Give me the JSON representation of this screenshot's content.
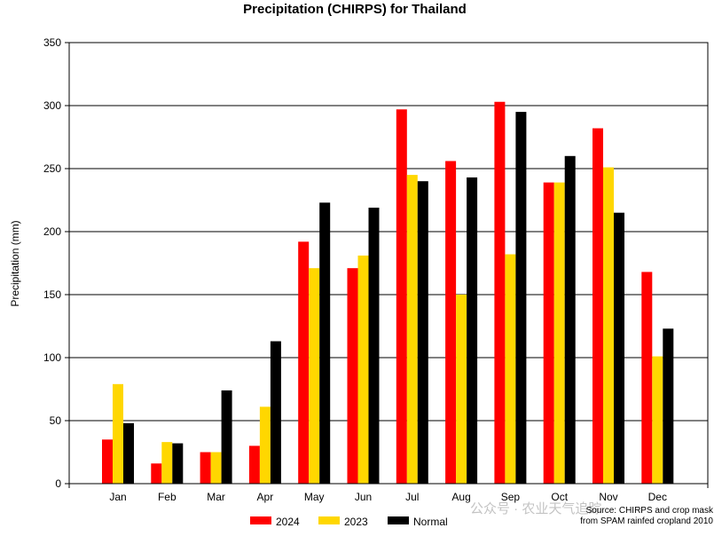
{
  "chart_data": {
    "type": "bar",
    "title": "Precipitation (CHIRPS) for Thailand",
    "xlabel": "",
    "ylabel": "Precipitation (mm)",
    "ylim": [
      0,
      350
    ],
    "yticks": [
      0,
      50,
      100,
      150,
      200,
      250,
      300,
      350
    ],
    "grid": true,
    "categories": [
      "Jan",
      "Feb",
      "Mar",
      "Apr",
      "May",
      "Jun",
      "Jul",
      "Aug",
      "Sep",
      "Oct",
      "Nov",
      "Dec"
    ],
    "series": [
      {
        "name": "2024",
        "color": "#ff0000",
        "values": [
          35,
          16,
          25,
          30,
          192,
          171,
          297,
          256,
          303,
          239,
          282,
          168
        ]
      },
      {
        "name": "2023",
        "color": "#ffd700",
        "values": [
          79,
          33,
          25,
          61,
          171,
          181,
          245,
          150,
          182,
          239,
          251,
          101
        ]
      },
      {
        "name": "Normal",
        "color": "#000000",
        "values": [
          48,
          32,
          74,
          113,
          223,
          219,
          240,
          243,
          295,
          260,
          215,
          123
        ]
      }
    ],
    "legend_position": "bottom-center"
  },
  "source": {
    "line1": "Source: CHIRPS and crop mask",
    "line2": "from SPAM rainfed cropland 2010"
  },
  "watermark": "公众号 · 农业天气追踪"
}
